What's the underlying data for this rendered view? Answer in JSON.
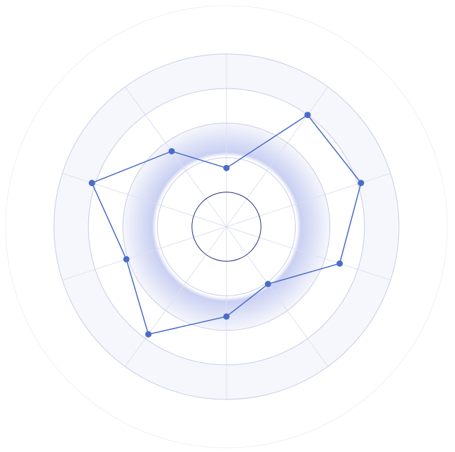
{
  "chart_data": {
    "type": "radar",
    "categories": [
      null,
      null,
      null,
      null,
      null,
      null,
      null,
      null,
      null,
      null
    ],
    "values": [
      34,
      80,
      82,
      69,
      41,
      52,
      77,
      61,
      82,
      54
    ],
    "color": "#4a6bc8",
    "ylim": [
      0,
      128
    ],
    "yticks": [
      20,
      40,
      60,
      80,
      100
    ],
    "grid": true
  }
}
